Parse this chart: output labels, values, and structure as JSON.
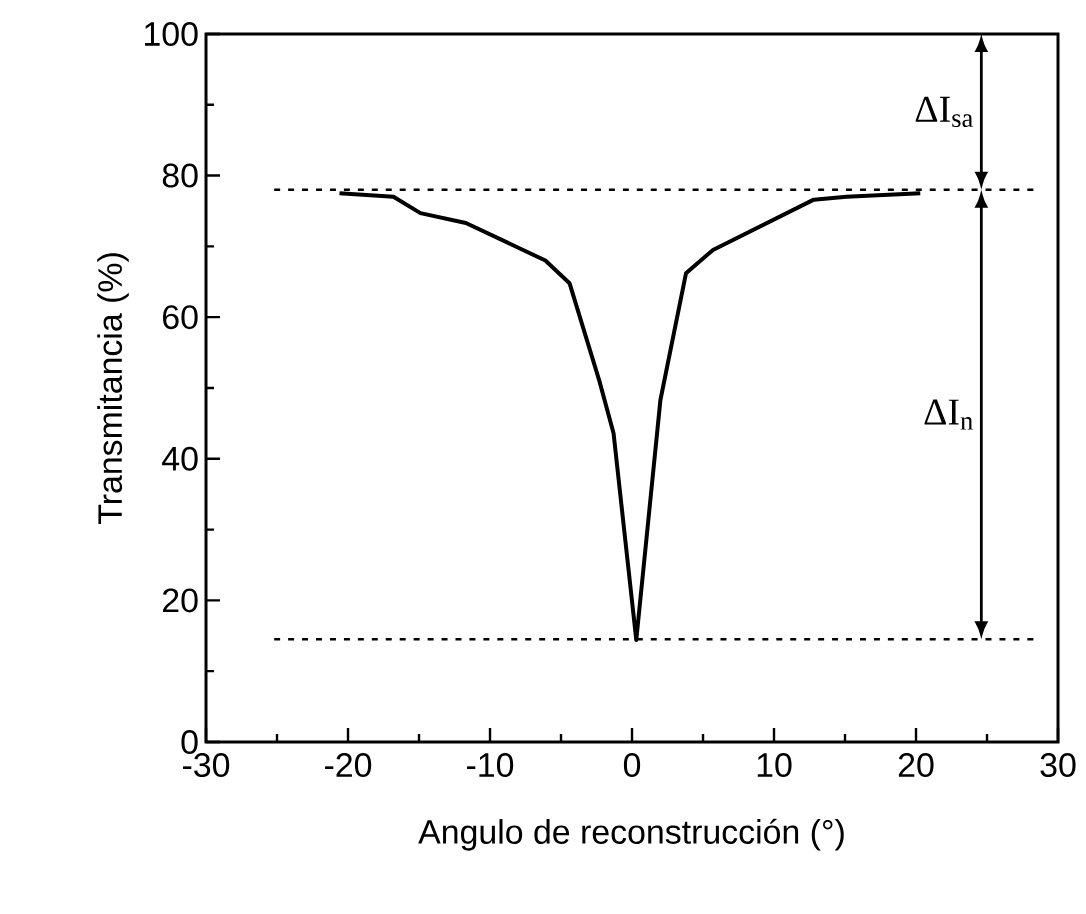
{
  "chart_data": {
    "type": "line",
    "xlabel": "Angulo de reconstrucción (°)",
    "ylabel": "Transmitancia (%)",
    "x": [
      -20.6,
      -16.8,
      -14.9,
      -11.7,
      -6.1,
      -4.4,
      -2.3,
      -1.3,
      0.3,
      2.0,
      3.8,
      5.7,
      12.8,
      15.1,
      20.3
    ],
    "series": [
      {
        "color": "#000000",
        "values": [
          77.5,
          77,
          74.7,
          73.3,
          68,
          64.8,
          51,
          43.6,
          14.4,
          48.3,
          66.2,
          69.5,
          76.6,
          77,
          77.5
        ]
      }
    ],
    "xlim": [
      -30,
      30
    ],
    "ylim": [
      0,
      100
    ],
    "xticks": [
      -30,
      -20,
      -10,
      0,
      10,
      20,
      30
    ],
    "yticks": [
      0,
      20,
      40,
      60,
      80,
      100
    ],
    "ref_lines": [
      {
        "axis": "y",
        "value": 78,
        "line_style": "dashed"
      },
      {
        "axis": "y",
        "value": 14.5,
        "line_style": "dashed"
      }
    ],
    "annotations": [
      "ΔI$_{sa}$",
      "ΔI$_{n}$"
    ],
    "marker": "none",
    "line_style": "solid",
    "grid": false
  }
}
